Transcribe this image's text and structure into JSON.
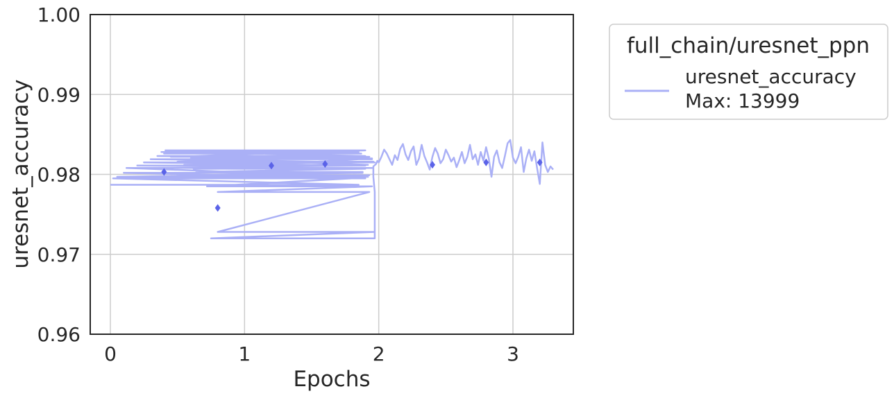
{
  "chart_data": {
    "type": "line",
    "xlabel": "Epochs",
    "ylabel": "uresnet_accuracy",
    "xlim": [
      -0.15,
      3.45
    ],
    "ylim": [
      0.96,
      1.0
    ],
    "x_ticks": [
      0,
      1,
      2,
      3
    ],
    "x_tick_labels": [
      "0",
      "1",
      "2",
      "3"
    ],
    "y_ticks": [
      0.96,
      0.97,
      0.98,
      0.99,
      1.0
    ],
    "y_tick_labels": [
      "0.96",
      "0.97",
      "0.98",
      "0.99",
      "1.00"
    ],
    "grid": true,
    "legend": {
      "title": "full_chain/uresnet_ppn",
      "placement": "outside-upper-right",
      "entries": [
        {
          "line1": "uresnet_accuracy",
          "line2": "Max: 13999"
        }
      ]
    },
    "colors": {
      "line": "#aab0f6",
      "marker": "#5b63e8",
      "grid": "#cccccc",
      "axes": "#262626"
    },
    "series": [
      {
        "name": "uresnet_accuracy",
        "kind": "line",
        "x": [
          0.0,
          1.85,
          0.02,
          1.9,
          0.1,
          1.88,
          0.05,
          1.92,
          0.12,
          1.95,
          0.2,
          1.9,
          0.25,
          1.97,
          0.3,
          1.95,
          0.35,
          1.9,
          0.38,
          1.85,
          0.4,
          1.87,
          0.41,
          1.9,
          0.45,
          1.93,
          0.5,
          1.96,
          0.55,
          1.92,
          0.6,
          1.95,
          0.62,
          1.9,
          0.64,
          1.88,
          0.66,
          1.93,
          0.7,
          1.9,
          0.72,
          1.95,
          0.8,
          1.93,
          0.8,
          1.97,
          0.75,
          1.97,
          1.97,
          1.96,
          1.96,
          1.98,
          1.99,
          2.0,
          2.02,
          2.04,
          2.06,
          2.08,
          2.1,
          2.12,
          2.14,
          2.16,
          2.18,
          2.2,
          2.22,
          2.24,
          2.26,
          2.28,
          2.3,
          2.32,
          2.34,
          2.36,
          2.38,
          2.4,
          2.42,
          2.44,
          2.46,
          2.48,
          2.5,
          2.52,
          2.54,
          2.56,
          2.58,
          2.6,
          2.62,
          2.64,
          2.66,
          2.68,
          2.7,
          2.72,
          2.74,
          2.76,
          2.78,
          2.8,
          2.82,
          2.84,
          2.86,
          2.88,
          2.9,
          2.92,
          2.94,
          2.96,
          2.98,
          3.0,
          3.02,
          3.04,
          3.06,
          3.08,
          3.1,
          3.12,
          3.14,
          3.16,
          3.18,
          3.2,
          3.22,
          3.24,
          3.26,
          3.28,
          3.3
        ],
        "y": [
          0.9787,
          0.9787,
          0.9795,
          0.9795,
          0.9802,
          0.9802,
          0.9797,
          0.9797,
          0.9808,
          0.9808,
          0.9811,
          0.9811,
          0.9815,
          0.9815,
          0.9819,
          0.9819,
          0.9823,
          0.9823,
          0.9828,
          0.9828,
          0.9826,
          0.9826,
          0.983,
          0.983,
          0.9822,
          0.9822,
          0.9816,
          0.9816,
          0.9812,
          0.9812,
          0.982,
          0.982,
          0.9807,
          0.9807,
          0.9803,
          0.9803,
          0.9799,
          0.9799,
          0.9796,
          0.9796,
          0.9785,
          0.9785,
          0.9778,
          0.9778,
          0.9728,
          0.9728,
          0.972,
          0.972,
          0.9778,
          0.9797,
          0.981,
          0.9813,
          0.9817,
          0.9815,
          0.9822,
          0.9831,
          0.9826,
          0.9819,
          0.9812,
          0.9824,
          0.9818,
          0.9832,
          0.9838,
          0.9825,
          0.9818,
          0.9829,
          0.9835,
          0.9812,
          0.982,
          0.9837,
          0.9823,
          0.9815,
          0.9806,
          0.9822,
          0.9833,
          0.9826,
          0.9814,
          0.9819,
          0.9831,
          0.9824,
          0.9816,
          0.9821,
          0.9809,
          0.9818,
          0.9828,
          0.9814,
          0.9822,
          0.9837,
          0.9819,
          0.9825,
          0.9812,
          0.9828,
          0.9817,
          0.9834,
          0.982,
          0.9797,
          0.9822,
          0.983,
          0.9815,
          0.9808,
          0.9823,
          0.9839,
          0.9843,
          0.9821,
          0.9814,
          0.9822,
          0.9834,
          0.9803,
          0.982,
          0.9831,
          0.9817,
          0.9829,
          0.9808,
          0.9788,
          0.984,
          0.9812,
          0.9803,
          0.981,
          0.9806
        ]
      },
      {
        "name": "",
        "kind": "markers",
        "x": [
          0.4,
          0.8,
          1.2,
          1.6,
          2.4,
          2.8,
          3.2
        ],
        "y": [
          0.9803,
          0.9758,
          0.9811,
          0.9813,
          0.9812,
          0.9815,
          0.9815
        ]
      }
    ]
  }
}
